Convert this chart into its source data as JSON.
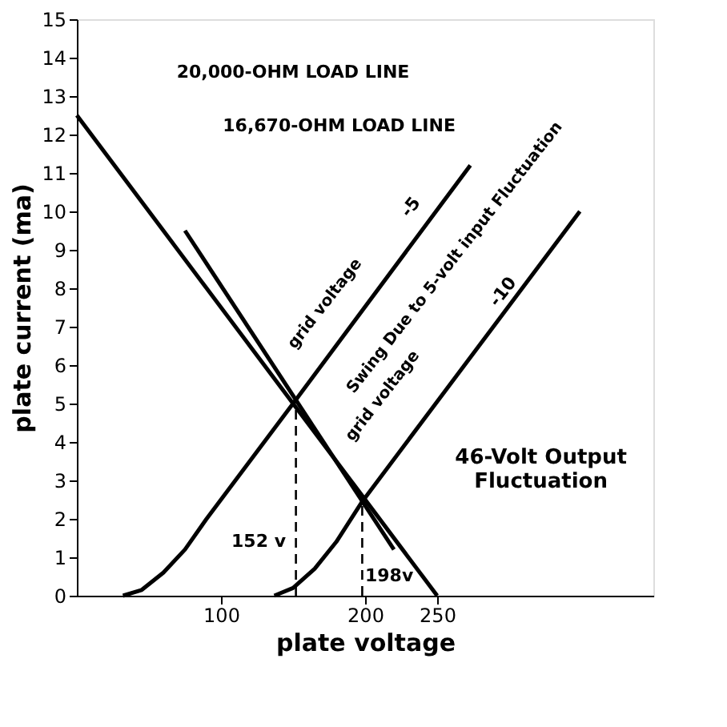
{
  "chart_data": {
    "type": "line",
    "xlabel": "plate voltage",
    "ylabel": "plate current (ma)",
    "xlim": [
      0,
      400
    ],
    "ylim": [
      0,
      15
    ],
    "xticks": [
      100,
      200,
      250
    ],
    "yticks": [
      0,
      1,
      2,
      3,
      4,
      5,
      6,
      7,
      8,
      9,
      10,
      11,
      12,
      13,
      14,
      15
    ],
    "grid": false,
    "marker": "none",
    "series": [
      {
        "color": "#000000",
        "line_style": "solid",
        "x": [
          0,
          250
        ],
        "values": [
          12.5,
          0
        ]
      },
      {
        "color": "#000000",
        "line_style": "solid",
        "x": [
          75,
          220
        ],
        "values": [
          9.5,
          1.2
        ]
      },
      {
        "color": "#000000",
        "line_style": "solid",
        "x": [
          32,
          45,
          60,
          75,
          90,
          152,
          273
        ],
        "values": [
          0,
          0.15,
          0.6,
          1.2,
          2.0,
          5.1,
          11.2
        ]
      },
      {
        "color": "#000000",
        "line_style": "solid",
        "x": [
          137,
          150,
          165,
          180,
          198,
          349
        ],
        "values": [
          0,
          0.2,
          0.7,
          1.4,
          2.45,
          10.0
        ]
      },
      {
        "color": "#000000",
        "line_style": "dashed",
        "x": [
          152,
          152
        ],
        "values": [
          0,
          5.1
        ]
      },
      {
        "color": "#000000",
        "line_style": "dashed",
        "x": [
          198,
          198
        ],
        "values": [
          0,
          2.45
        ]
      }
    ],
    "annotations": [
      "20,000-OHM LOAD LINE",
      "16,670-OHM LOAD LINE",
      "grid voltage",
      "-5",
      "grid voltage",
      "-10",
      "Swing Due to 5-volt input Fluctuation",
      "46-Volt Output Fluctuation",
      "152 v",
      "198v"
    ]
  }
}
